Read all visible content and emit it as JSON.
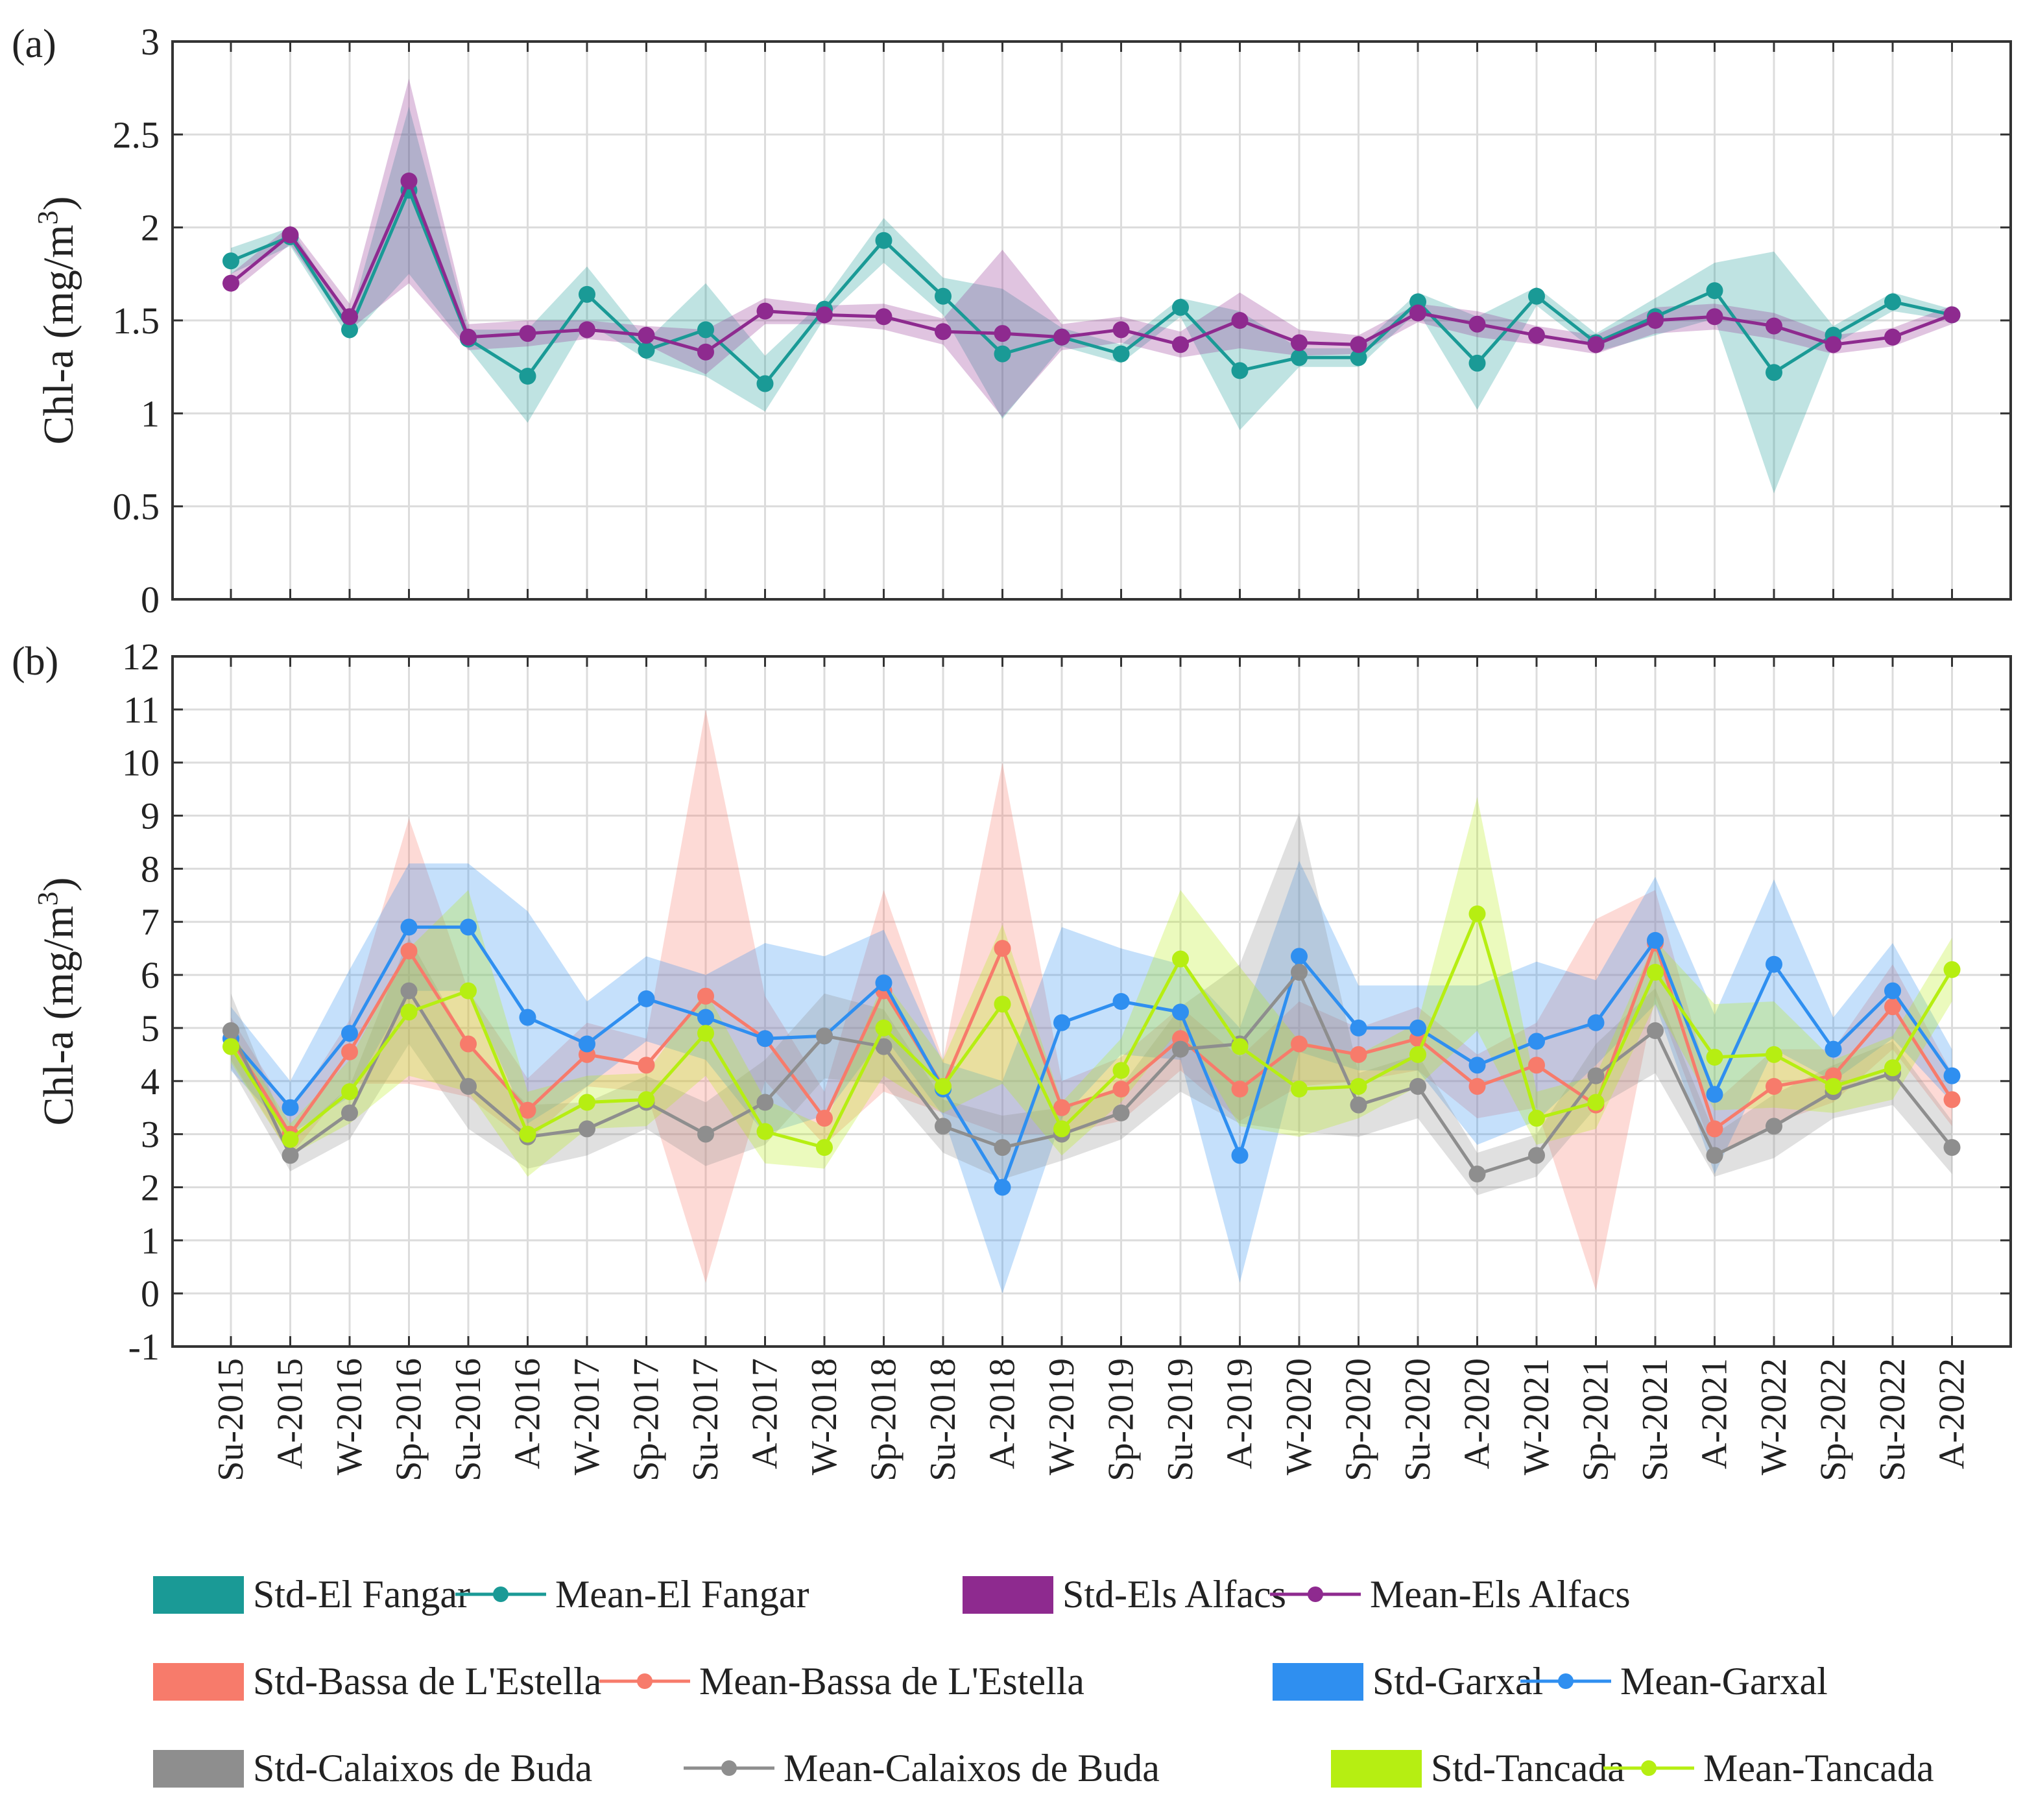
{
  "chart_data": [
    {
      "panel_label": "(a)",
      "type": "line",
      "ylabel": "Chl-a (mg/m",
      "ylabel_sup": "3",
      "ylabel_close": ")",
      "ylim": [
        0,
        3
      ],
      "yticks": [
        "0",
        "0.5",
        "1",
        "1.5",
        "2",
        "2.5",
        "3"
      ],
      "categories": [
        "Su-2015",
        "A-2015",
        "W-2016",
        "Sp-2016",
        "Su-2016",
        "A-2016",
        "W-2017",
        "Sp-2017",
        "Su-2017",
        "A-2017",
        "W-2018",
        "Sp-2018",
        "Su-2018",
        "A-2018",
        "W-2019",
        "Sp-2019",
        "Su-2019",
        "A-2019",
        "W-2020",
        "Sp-2020",
        "Su-2020",
        "A-2020",
        "W-2021",
        "Sp-2021",
        "Su-2021",
        "A-2021",
        "W-2022",
        "Sp-2022",
        "Su-2022",
        "A-2022"
      ],
      "grid": true,
      "series": [
        {
          "name": "El Fangar",
          "color": "#1a9a96",
          "mean": [
            1.82,
            1.95,
            1.45,
            2.2,
            1.4,
            1.2,
            1.64,
            1.34,
            1.45,
            1.16,
            1.56,
            1.93,
            1.63,
            1.32,
            1.41,
            1.32,
            1.57,
            1.23,
            1.3,
            1.3,
            1.6,
            1.27,
            1.63,
            1.38,
            1.52,
            1.66,
            1.22,
            1.42,
            1.6,
            1.53
          ],
          "std": [
            0.07,
            0.05,
            0.05,
            0.45,
            0.05,
            0.25,
            0.15,
            0.05,
            0.25,
            0.15,
            0.05,
            0.12,
            0.1,
            0.35,
            0.05,
            0.05,
            0.05,
            0.32,
            0.05,
            0.05,
            0.05,
            0.25,
            0.05,
            0.05,
            0.1,
            0.15,
            0.65,
            0.05,
            0.05,
            0.03
          ]
        },
        {
          "name": "Els Alfacs",
          "color": "#8e2a8f",
          "mean": [
            1.7,
            1.96,
            1.52,
            2.25,
            1.41,
            1.43,
            1.45,
            1.42,
            1.33,
            1.55,
            1.53,
            1.52,
            1.44,
            1.43,
            1.41,
            1.45,
            1.37,
            1.5,
            1.38,
            1.37,
            1.54,
            1.48,
            1.42,
            1.37,
            1.5,
            1.52,
            1.47,
            1.37,
            1.41,
            1.53
          ],
          "std": [
            0.05,
            0.05,
            0.07,
            0.55,
            0.07,
            0.07,
            0.05,
            0.05,
            0.12,
            0.07,
            0.05,
            0.07,
            0.07,
            0.45,
            0.07,
            0.07,
            0.07,
            0.15,
            0.07,
            0.05,
            0.05,
            0.07,
            0.05,
            0.05,
            0.07,
            0.07,
            0.07,
            0.05,
            0.05,
            0.05
          ]
        }
      ]
    },
    {
      "panel_label": "(b)",
      "type": "line",
      "ylabel": "Chl-a  (mg/m",
      "ylabel_sup": "3",
      "ylabel_close": ")",
      "ylim": [
        -1,
        12
      ],
      "yticks": [
        "-1",
        "0",
        "1",
        "2",
        "3",
        "4",
        "5",
        "6",
        "7",
        "8",
        "9",
        "10",
        "11",
        "12"
      ],
      "categories": [
        "Su-2015",
        "A-2015",
        "W-2016",
        "Sp-2016",
        "Su-2016",
        "A-2016",
        "W-2017",
        "Sp-2017",
        "Su-2017",
        "A-2017",
        "W-2018",
        "Sp-2018",
        "Su-2018",
        "A-2018",
        "W-2019",
        "Sp-2019",
        "Su-2019",
        "A-2019",
        "W-2020",
        "Sp-2020",
        "Su-2020",
        "A-2020",
        "W-2021",
        "Sp-2021",
        "Su-2021",
        "A-2021",
        "W-2022",
        "Sp-2022",
        "Su-2022",
        "A-2022"
      ],
      "grid": true,
      "series": [
        {
          "name": "Bassa de L'Estella",
          "color": "#f77b6b",
          "mean": [
            4.8,
            3.0,
            4.55,
            6.45,
            4.7,
            3.45,
            4.5,
            4.3,
            5.6,
            4.8,
            3.3,
            5.7,
            3.9,
            6.5,
            3.5,
            3.85,
            4.8,
            3.85,
            4.7,
            4.5,
            4.8,
            3.9,
            4.3,
            3.55,
            6.6,
            3.1,
            3.9,
            4.1,
            5.4,
            3.65
          ],
          "std": [
            0.4,
            0.4,
            0.6,
            2.5,
            1.0,
            0.6,
            0.6,
            0.5,
            5.4,
            0.8,
            0.5,
            1.9,
            0.5,
            3.5,
            0.5,
            0.6,
            0.6,
            0.6,
            0.8,
            0.5,
            0.6,
            0.6,
            0.8,
            3.5,
            1.0,
            0.5,
            0.7,
            0.5,
            0.8,
            0.5
          ]
        },
        {
          "name": "Garxal",
          "color": "#2f8ff0",
          "mean": [
            4.8,
            3.5,
            4.9,
            6.9,
            6.9,
            5.2,
            4.7,
            5.55,
            5.2,
            4.8,
            4.85,
            5.85,
            3.85,
            2.0,
            5.1,
            5.5,
            5.3,
            2.6,
            6.35,
            5.0,
            5.0,
            4.3,
            4.75,
            5.1,
            6.65,
            3.75,
            6.2,
            4.6,
            5.7,
            4.1
          ],
          "std": [
            0.6,
            0.5,
            1.2,
            1.2,
            1.2,
            2.0,
            0.8,
            0.8,
            0.8,
            1.8,
            1.5,
            1.0,
            0.5,
            2.0,
            1.8,
            1.0,
            0.9,
            2.4,
            1.8,
            0.8,
            0.8,
            1.5,
            1.5,
            0.8,
            1.2,
            1.5,
            1.6,
            0.6,
            0.9,
            0.5
          ]
        },
        {
          "name": "Calaixos de Buda",
          "color": "#8e8e8e",
          "mean": [
            4.95,
            2.6,
            3.4,
            5.7,
            3.9,
            2.95,
            3.1,
            3.6,
            3.0,
            3.6,
            4.85,
            4.65,
            3.15,
            2.75,
            3.0,
            3.4,
            4.6,
            4.7,
            6.05,
            3.55,
            3.9,
            2.25,
            2.6,
            4.1,
            4.95,
            2.6,
            3.15,
            3.8,
            4.15,
            2.75
          ],
          "std": [
            0.7,
            0.3,
            0.5,
            1.0,
            0.8,
            0.6,
            0.5,
            0.5,
            0.6,
            0.8,
            0.8,
            0.7,
            0.5,
            0.6,
            0.5,
            0.5,
            0.8,
            1.5,
            3.0,
            0.6,
            0.6,
            0.4,
            0.4,
            0.6,
            0.8,
            0.4,
            0.6,
            0.5,
            0.6,
            0.5
          ]
        },
        {
          "name": "Tancada",
          "color": "#b6ee12",
          "mean": [
            4.65,
            2.9,
            3.8,
            5.3,
            5.7,
            3.0,
            3.6,
            3.65,
            4.9,
            3.05,
            2.75,
            5.0,
            3.9,
            5.45,
            3.1,
            4.2,
            6.3,
            4.65,
            3.85,
            3.9,
            4.5,
            7.15,
            3.3,
            3.6,
            6.05,
            4.45,
            4.5,
            3.9,
            4.25,
            6.1
          ],
          "std": [
            0.3,
            0.3,
            0.6,
            1.2,
            1.9,
            0.8,
            0.5,
            0.5,
            0.8,
            0.6,
            0.4,
            0.9,
            0.5,
            1.5,
            0.5,
            0.6,
            1.3,
            1.5,
            0.9,
            0.6,
            0.6,
            2.2,
            0.5,
            0.5,
            0.6,
            1.0,
            1.0,
            0.5,
            0.6,
            0.6
          ]
        }
      ]
    }
  ],
  "legend": {
    "rows": [
      [
        {
          "kind": "std",
          "label": "Std-El Fangar",
          "color": "#1a9a96"
        },
        {
          "kind": "mean",
          "label": "Mean-El Fangar",
          "color": "#1a9a96"
        },
        {
          "kind": "std",
          "label": "Std-Els Alfacs",
          "color": "#8e2a8f"
        },
        {
          "kind": "mean",
          "label": "Mean-Els Alfacs",
          "color": "#8e2a8f"
        }
      ],
      [
        {
          "kind": "std",
          "label": "Std-Bassa de L'Estella",
          "color": "#f77b6b"
        },
        {
          "kind": "mean",
          "label": "Mean-Bassa de L'Estella",
          "color": "#f77b6b"
        },
        {
          "kind": "std",
          "label": "Std-Garxal",
          "color": "#2f8ff0"
        },
        {
          "kind": "mean",
          "label": "Mean-Garxal",
          "color": "#2f8ff0"
        }
      ],
      [
        {
          "kind": "std",
          "label": "Std-Calaixos de Buda",
          "color": "#8e8e8e"
        },
        {
          "kind": "mean",
          "label": "Mean-Calaixos de Buda",
          "color": "#8e8e8e"
        },
        {
          "kind": "std",
          "label": "Std-Tancada",
          "color": "#b6ee12"
        },
        {
          "kind": "mean",
          "label": "Mean-Tancada",
          "color": "#b6ee12"
        }
      ]
    ]
  }
}
